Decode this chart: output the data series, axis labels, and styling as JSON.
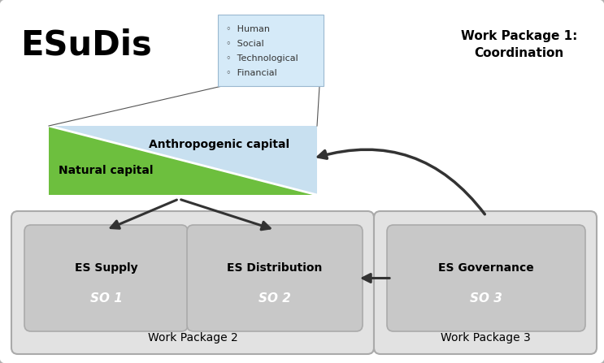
{
  "bg_color": "#ffffff",
  "title_esudis": "ESuDis",
  "wp1_text": "Work Package 1:\nCoordination",
  "wp2_text": "Work Package 2",
  "wp3_text": "Work Package 3",
  "nat_capital_label": "Natural capital",
  "anth_capital_label": "Anthropogenic capital",
  "legend_items": [
    "Human",
    "Social",
    "Technological",
    "Financial"
  ],
  "es_supply_line1": "ES Supply",
  "es_supply_line2": "SO 1",
  "es_dist_line1": "ES Distribution",
  "es_dist_line2": "SO 2",
  "es_gov_line1": "ES Governance",
  "es_gov_line2": "SO 3",
  "green_color": "#6dbf3e",
  "blue_color": "#c8e0f0",
  "legend_box_color": "#d5eaf8",
  "wp2_box_color": "#e2e2e2",
  "wp3_box_color": "#e2e2e2",
  "inner_box_color": "#c8c8c8",
  "arrow_color": "#333333",
  "outer_border_color": "#b0b0b0"
}
